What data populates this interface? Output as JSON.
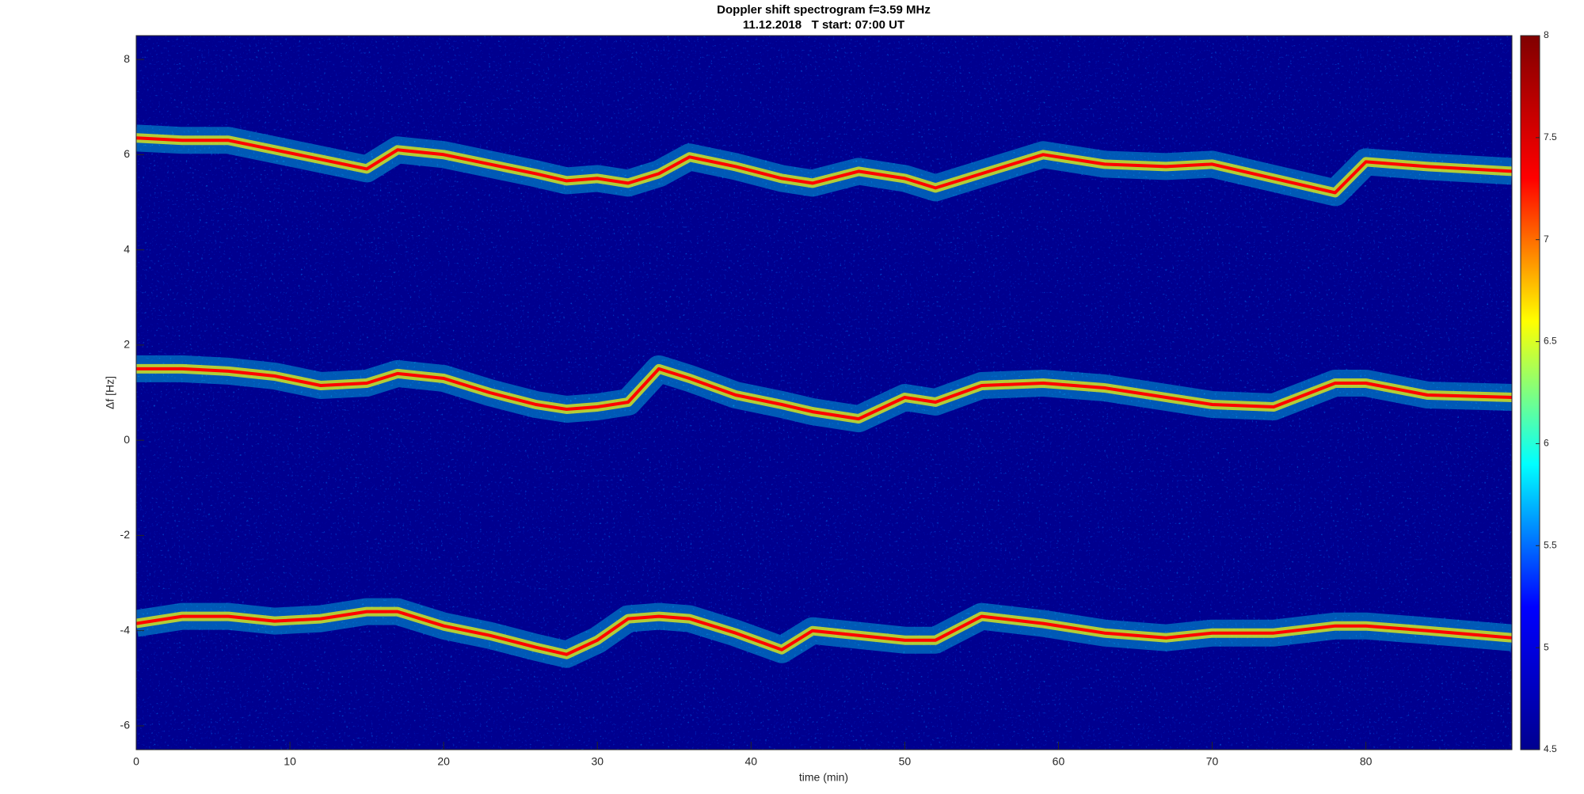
{
  "chart_data": {
    "type": "spectrogram",
    "title": "Doppler shift spectrogram f=3.59 MHz",
    "subtitle": "11.12.2018   T start: 07:00 UT",
    "xlabel": "time (min)",
    "ylabel": "Δf [Hz]",
    "xlim": [
      0,
      89.5
    ],
    "xticks": [
      0,
      10,
      20,
      30,
      40,
      50,
      60,
      70,
      80
    ],
    "ylim": [
      -6.5,
      8.5
    ],
    "yticks": [
      -6,
      -4,
      -2,
      0,
      2,
      4,
      6,
      8
    ],
    "grid": false,
    "colormap": [
      "#00008f",
      "#0000ff",
      "#00ffff",
      "#ffff00",
      "#ff0000",
      "#800000"
    ],
    "clim": [
      4.5,
      8
    ],
    "cticks": [
      4.5,
      5,
      5.5,
      6,
      6.5,
      7,
      7.5,
      8
    ],
    "x": [
      0,
      3,
      6,
      9,
      12,
      15,
      17,
      20,
      23,
      26,
      28,
      30,
      32,
      34,
      36,
      39,
      42,
      44,
      47,
      50,
      52,
      55,
      59,
      63,
      67,
      70,
      74,
      78,
      80,
      84,
      89.5
    ],
    "series": [
      {
        "color": "#ff0000",
        "values": [
          6.35,
          6.3,
          6.3,
          6.1,
          5.9,
          5.7,
          6.1,
          6.0,
          5.8,
          5.6,
          5.45,
          5.5,
          5.4,
          5.6,
          5.95,
          5.75,
          5.5,
          5.4,
          5.65,
          5.5,
          5.3,
          5.6,
          6.0,
          5.8,
          5.75,
          5.8,
          5.5,
          5.2,
          5.85,
          5.75,
          5.65
        ]
      },
      {
        "color": "#ff0000",
        "values": [
          1.5,
          1.5,
          1.45,
          1.35,
          1.15,
          1.2,
          1.4,
          1.3,
          1.0,
          0.75,
          0.65,
          0.7,
          0.8,
          1.5,
          1.3,
          0.95,
          0.75,
          0.6,
          0.45,
          0.9,
          0.8,
          1.15,
          1.2,
          1.1,
          0.9,
          0.75,
          0.7,
          1.2,
          1.2,
          0.95,
          0.9
        ]
      },
      {
        "color": "#ff0000",
        "values": [
          -3.85,
          -3.7,
          -3.7,
          -3.8,
          -3.75,
          -3.6,
          -3.6,
          -3.9,
          -4.1,
          -4.35,
          -4.5,
          -4.2,
          -3.75,
          -3.7,
          -3.75,
          -4.05,
          -4.4,
          -4.0,
          -4.1,
          -4.2,
          -4.2,
          -3.7,
          -3.85,
          -4.05,
          -4.15,
          -4.05,
          -4.05,
          -3.9,
          -3.9,
          -4.0,
          -4.15
        ]
      }
    ]
  }
}
